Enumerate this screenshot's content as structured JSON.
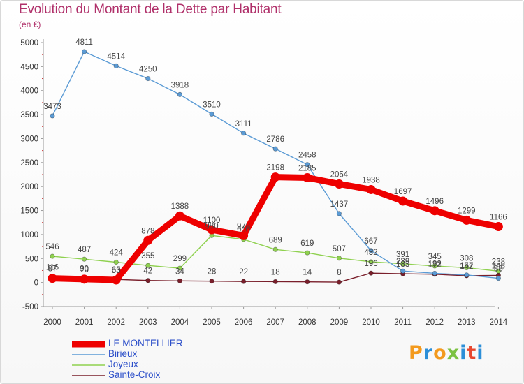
{
  "title": "Evolution du Montant de la Dette par Habitant",
  "subtitle": "(en €)",
  "logo_text": "Proxiti",
  "chart_data": {
    "type": "line",
    "title": "Evolution du Montant de la Dette par Habitant",
    "subtitle": "(en €)",
    "xlabel": "",
    "ylabel": "",
    "x": [
      "2000",
      "2001",
      "2002",
      "2003",
      "2004",
      "2005",
      "2006",
      "2007",
      "2008",
      "2009",
      "2010",
      "2011",
      "2012",
      "2013",
      "2014"
    ],
    "ylim": [
      -500,
      5000
    ],
    "yticks": [
      "-500",
      "0",
      "500",
      "1000",
      "1500",
      "2000",
      "2500",
      "3000",
      "3500",
      "4000",
      "4500",
      "5000"
    ],
    "grid": false,
    "legend_position": "bottom-left",
    "series": [
      {
        "name": "LE MONTELLIER",
        "color": "#ee0000",
        "values": [
          87,
          70,
          53,
          878,
          1388,
          1100,
          978,
          2198,
          2185,
          2054,
          1938,
          1697,
          1496,
          1299,
          1166
        ],
        "labels": [
          "87",
          "70",
          "53",
          "878",
          "1388",
          "1100",
          "978",
          "2198",
          "2185",
          "2054",
          "1938",
          "1697",
          "1496",
          "1299",
          "1166"
        ]
      },
      {
        "name": "Birieux",
        "color": "#5b9bd5",
        "values": [
          3473,
          4811,
          4514,
          4250,
          3918,
          3510,
          3111,
          2786,
          2458,
          1437,
          667,
          239,
          192,
          157,
          88
        ],
        "labels": [
          "3473",
          "4811",
          "4514",
          "4250",
          "3918",
          "3510",
          "3111",
          "2786",
          "2458",
          "1437",
          "667",
          "239",
          "192",
          "157",
          "88"
        ]
      },
      {
        "name": "Joyeux",
        "color": "#8fd14f",
        "values": [
          546,
          487,
          424,
          355,
          299,
          980,
          900,
          689,
          619,
          507,
          432,
          391,
          345,
          308,
          238
        ],
        "labels": [
          "546",
          "487",
          "424",
          "355",
          "299",
          "980",
          "900",
          "689",
          "619",
          "507",
          "432",
          "391",
          "345",
          "308",
          "238"
        ]
      },
      {
        "name": "Sainte-Croix",
        "color": "#7a1f2b",
        "values": [
          116,
          90,
          65,
          42,
          34,
          28,
          22,
          18,
          14,
          8,
          196,
          183,
          172,
          142,
          148
        ],
        "labels": [
          "116",
          "90",
          "65",
          "42",
          "34",
          "28",
          "22",
          "18",
          "14",
          "8",
          "196",
          "183",
          "172",
          "142",
          "148"
        ]
      }
    ]
  }
}
